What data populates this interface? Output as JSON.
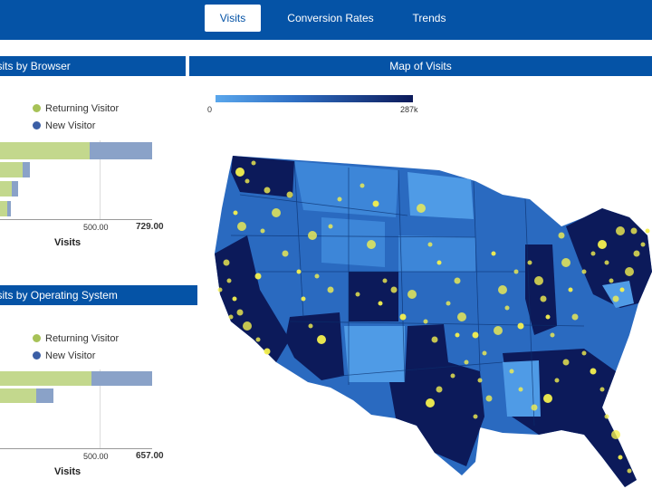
{
  "tabs": [
    {
      "label": "Visits",
      "active": true
    },
    {
      "label": "Conversion Rates",
      "active": false
    },
    {
      "label": "Trends",
      "active": false
    }
  ],
  "browser_panel": {
    "title": "Visits by Browser",
    "legend": [
      {
        "label": "Returning Visitor",
        "color": "#a7c257"
      },
      {
        "label": "New Visitor",
        "color": "#3b5fa6"
      }
    ],
    "ticks": [
      "500.00",
      "729.00"
    ],
    "axis_label": "Visits"
  },
  "os_panel": {
    "title": "Visits by Operating System",
    "legend": [
      {
        "label": "Returning Visitor",
        "color": "#a7c257"
      },
      {
        "label": "New Visitor",
        "color": "#3b5fa6"
      }
    ],
    "ticks": [
      "500.00",
      "657.00"
    ],
    "axis_label": "Visits"
  },
  "map_panel": {
    "title": "Map of Visits",
    "scale_min": "0",
    "scale_max": "287k"
  },
  "colors": {
    "nav_blue": "#0553a6",
    "returning": "#c3d88d",
    "new": "#8aa2c8",
    "map_light": "#4f9be6",
    "map_mid": "#2a6ac0",
    "map_dark": "#0c1a5a",
    "visit_dots": "#f4f04f"
  },
  "chart_data": [
    {
      "type": "bar",
      "orientation": "horizontal",
      "stacked": true,
      "title": "Visits by Browser",
      "xlabel": "Visits",
      "xlim": [
        0,
        729
      ],
      "series": [
        {
          "name": "Returning Visitor",
          "values": [
            430,
            110,
            55,
            35
          ]
        },
        {
          "name": "New Visitor",
          "values": [
            299,
            35,
            30,
            15
          ]
        }
      ]
    },
    {
      "type": "bar",
      "orientation": "horizontal",
      "stacked": true,
      "title": "Visits by Operating System",
      "xlabel": "Visits",
      "xlim": [
        0,
        657
      ],
      "series": [
        {
          "name": "Returning Visitor",
          "values": [
            395,
            155,
            0
          ]
        },
        {
          "name": "New Visitor",
          "values": [
            262,
            75,
            0
          ]
        }
      ]
    }
  ]
}
